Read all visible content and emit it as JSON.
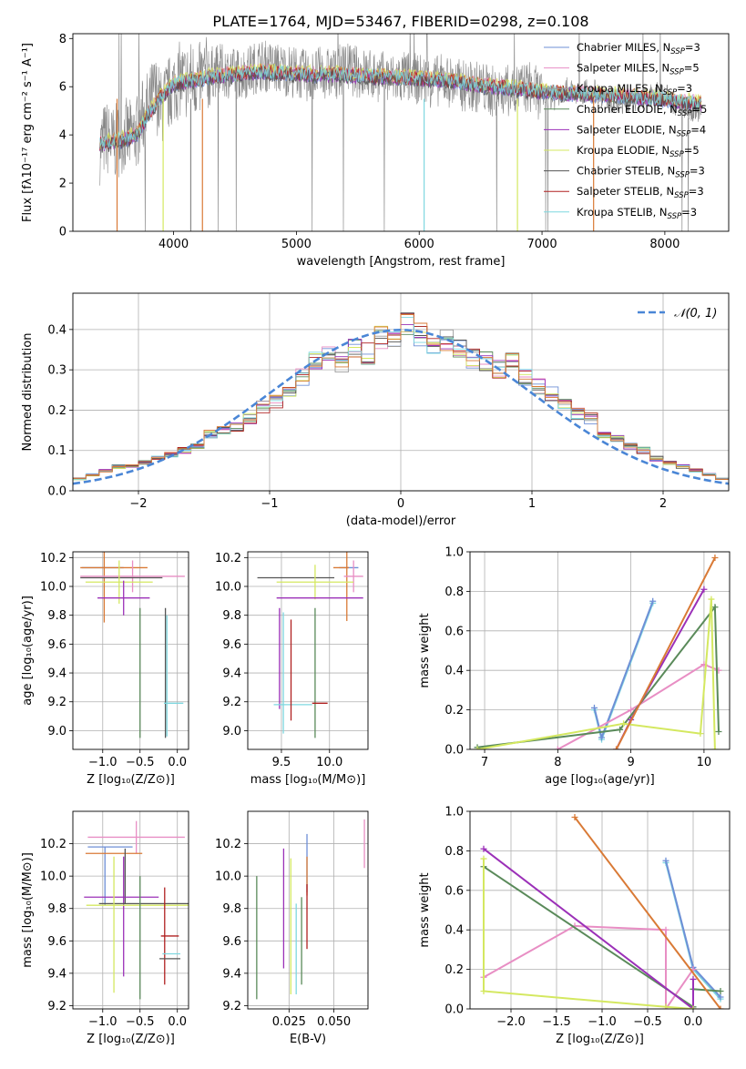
{
  "title": "PLATE=1764, MJD=53467, FIBERID=0298, z=0.108",
  "series_colors": [
    "#6e8fd6",
    "#e88ec4",
    "#9c9c9c",
    "#5a8a5a",
    "#9b30b8",
    "#d4e860",
    "#555555",
    "#b02020",
    "#7fd8e0",
    "#d97a36"
  ],
  "legend_entries": [
    {
      "label": "Chabrier MILES, N",
      "sub": "SSP",
      "eq": "=3",
      "color": "#6e8fd6"
    },
    {
      "label": "Salpeter MILES, N",
      "sub": "SSP",
      "eq": "=5",
      "color": "#e88ec4"
    },
    {
      "label": "Kroupa MILES, N",
      "sub": "SSP",
      "eq": "=3",
      "color": "#9c9c9c"
    },
    {
      "label": "Chabrier ELODIE, N",
      "sub": "SSP",
      "eq": "=5",
      "color": "#5a8a5a"
    },
    {
      "label": "Salpeter ELODIE, N",
      "sub": "SSP",
      "eq": "=4",
      "color": "#9b30b8"
    },
    {
      "label": "Kroupa ELODIE, N",
      "sub": "SSP",
      "eq": "=5",
      "color": "#d4e860"
    },
    {
      "label": "Chabrier STELIB, N",
      "sub": "SSP",
      "eq": "=3",
      "color": "#555555"
    },
    {
      "label": "Salpeter STELIB, N",
      "sub": "SSP",
      "eq": "=3",
      "color": "#b02020"
    },
    {
      "label": "Kroupa STELIB, N",
      "sub": "SSP",
      "eq": "=3",
      "color": "#7fd8e0"
    }
  ],
  "chart_data": [
    {
      "id": "spectrum",
      "type": "line",
      "xlabel": "wavelength [Angstrom, rest frame]",
      "ylabel": "Flux [fλ10⁻¹⁷ erg cm⁻² s⁻¹ A⁻¹]",
      "xlim": [
        3180,
        8520
      ],
      "ylim": [
        0,
        8.2
      ],
      "xticks": [
        4000,
        5000,
        6000,
        7000,
        8000
      ],
      "yticks": [
        0,
        2,
        4,
        6,
        8
      ],
      "data_x": [
        3400,
        3450,
        3500,
        3550,
        3600,
        3650,
        3700,
        3750,
        3800,
        3850,
        3900,
        3950,
        4000,
        4050,
        4100,
        4150,
        4200,
        4250,
        4300,
        4400,
        4500,
        4600,
        4700,
        4800,
        4900,
        5000,
        5100,
        5200,
        5300,
        5400,
        5500,
        5600,
        5700,
        5800,
        5900,
        6000,
        6100,
        6200,
        6300,
        6400,
        6500,
        6600,
        6700,
        6800,
        6900,
        7000,
        7100,
        7200,
        7300,
        7400,
        7500,
        7600,
        7700,
        7800,
        7900,
        8000,
        8100,
        8200,
        8300
      ],
      "data_y": [
        3.5,
        3.9,
        3.6,
        3.8,
        4.0,
        3.9,
        4.1,
        4.8,
        5.2,
        5.8,
        5.1,
        5.6,
        6.0,
        6.3,
        6.2,
        6.4,
        6.2,
        6.5,
        6.6,
        6.7,
        6.5,
        6.6,
        6.9,
        6.8,
        6.7,
        6.6,
        6.4,
        6.6,
        6.5,
        6.8,
        6.6,
        6.5,
        6.4,
        6.3,
        6.4,
        6.3,
        6.2,
        6.3,
        6.1,
        6.0,
        6.0,
        5.8,
        5.8,
        5.9,
        6.0,
        5.6,
        5.5,
        5.9,
        5.7,
        5.9,
        5.6,
        5.3,
        5.4,
        5.5,
        5.7,
        5.7,
        5.2,
        5.1,
        5.0
      ],
      "model_x": [
        3400,
        3500,
        3600,
        3700,
        3800,
        3900,
        4000,
        4100,
        4200,
        4300,
        4500,
        4700,
        4900,
        5100,
        5300,
        5500,
        5700,
        5900,
        6100,
        6300,
        6500,
        6700,
        6900,
        7100,
        7300,
        7500,
        7700,
        7900,
        8100,
        8300
      ],
      "model_y": [
        3.6,
        3.7,
        3.8,
        4.0,
        4.9,
        5.6,
        6.1,
        6.2,
        6.3,
        6.4,
        6.5,
        6.6,
        6.55,
        6.5,
        6.5,
        6.45,
        6.4,
        6.35,
        6.3,
        6.2,
        6.05,
        5.95,
        5.85,
        5.75,
        5.7,
        5.65,
        5.6,
        5.5,
        5.4,
        5.3
      ],
      "legend": "top-right",
      "grid": false
    },
    {
      "id": "residual_hist",
      "type": "histogram",
      "xlabel": "(data-model)/error",
      "ylabel": "Normed distribution",
      "xlim": [
        -2.5,
        2.5
      ],
      "ylim": [
        0,
        0.49
      ],
      "xticks": [
        -2,
        -1,
        0,
        1,
        2
      ],
      "yticks": [
        0.0,
        0.1,
        0.2,
        0.3,
        0.4
      ],
      "bin_edges": [
        -2.5,
        -2.4,
        -2.3,
        -2.2,
        -2.1,
        -2.0,
        -1.9,
        -1.8,
        -1.7,
        -1.6,
        -1.5,
        -1.4,
        -1.3,
        -1.2,
        -1.1,
        -1.0,
        -0.9,
        -0.8,
        -0.7,
        -0.6,
        -0.5,
        -0.4,
        -0.3,
        -0.2,
        -0.1,
        0.0,
        0.1,
        0.2,
        0.3,
        0.4,
        0.5,
        0.6,
        0.7,
        0.8,
        0.9,
        1.0,
        1.1,
        1.2,
        1.3,
        1.4,
        1.5,
        1.6,
        1.7,
        1.8,
        1.9,
        2.0,
        2.1,
        2.2,
        2.3,
        2.4,
        2.5
      ],
      "values": [
        0.03,
        0.04,
        0.05,
        0.06,
        0.06,
        0.07,
        0.08,
        0.09,
        0.1,
        0.11,
        0.14,
        0.15,
        0.16,
        0.18,
        0.21,
        0.22,
        0.24,
        0.28,
        0.32,
        0.34,
        0.32,
        0.36,
        0.34,
        0.38,
        0.37,
        0.42,
        0.39,
        0.36,
        0.37,
        0.36,
        0.33,
        0.32,
        0.3,
        0.32,
        0.28,
        0.26,
        0.24,
        0.21,
        0.19,
        0.18,
        0.14,
        0.13,
        0.11,
        0.1,
        0.08,
        0.07,
        0.06,
        0.05,
        0.04,
        0.03
      ],
      "gaussian_label": "𝒩(0, 1)",
      "legend": "top-right",
      "grid": true
    },
    {
      "id": "age_vs_Z",
      "type": "errorbar",
      "xlabel": "Z [log₁₀(Z/Z⊙)]",
      "ylabel": "age  [log₁₀(age/yr)]",
      "xlim": [
        -1.4,
        0.15
      ],
      "ylim": [
        8.87,
        10.24
      ],
      "xticks": [
        -1.0,
        -0.5,
        0.0
      ],
      "yticks": [
        9.0,
        9.2,
        9.4,
        9.6,
        9.8,
        10.0,
        10.2
      ],
      "points": [
        {
          "x": -1.0,
          "y": 10.13,
          "xerr": 0.28,
          "yerr": 0.0,
          "c": "#6e8fd6"
        },
        {
          "x": -0.98,
          "y": 10.0,
          "xerr": 0.0,
          "yerr": 0.25,
          "c": "#d97a36"
        },
        {
          "x": -0.85,
          "y": 10.13,
          "xerr": 0.45,
          "yerr": 0.0,
          "c": "#d97a36"
        },
        {
          "x": -0.6,
          "y": 10.07,
          "xerr": 0.7,
          "yerr": 0.11,
          "c": "#e88ec4"
        },
        {
          "x": -0.75,
          "y": 10.06,
          "xerr": 0.55,
          "yerr": 0.0,
          "c": "#555555"
        },
        {
          "x": -0.78,
          "y": 10.03,
          "xerr": 0.45,
          "yerr": 0.15,
          "c": "#d4e860"
        },
        {
          "x": -0.72,
          "y": 9.92,
          "xerr": 0.35,
          "yerr": 0.12,
          "c": "#9b30b8"
        },
        {
          "x": -0.5,
          "y": 9.4,
          "xerr": 0.0,
          "yerr": 0.45,
          "c": "#5a8a5a"
        },
        {
          "x": -0.16,
          "y": 9.4,
          "xerr": 0.0,
          "yerr": 0.45,
          "c": "#555555"
        },
        {
          "x": -0.05,
          "y": 9.19,
          "xerr": 0.13,
          "yerr": 0.0,
          "c": "#7fd8e0"
        },
        {
          "x": -0.14,
          "y": 9.38,
          "xerr": 0.0,
          "yerr": 0.42,
          "c": "#7fd8e0"
        }
      ]
    },
    {
      "id": "age_vs_mass",
      "type": "errorbar",
      "xlabel": "mass [log₁₀(M/M⊙)]",
      "ylabel": "",
      "xlim": [
        9.15,
        10.4
      ],
      "ylim": [
        8.87,
        10.24
      ],
      "xticks": [
        9.5,
        10.0
      ],
      "yticks": [
        9.0,
        9.2,
        9.4,
        9.6,
        9.8,
        10.0,
        10.2
      ],
      "points": [
        {
          "x": 10.2,
          "y": 10.13,
          "xerr": 0.1,
          "yerr": 0.0,
          "c": "#6e8fd6"
        },
        {
          "x": 10.18,
          "y": 10.0,
          "xerr": 0.0,
          "yerr": 0.24,
          "c": "#d97a36"
        },
        {
          "x": 10.12,
          "y": 10.13,
          "xerr": 0.08,
          "yerr": 0.0,
          "c": "#d97a36"
        },
        {
          "x": 10.25,
          "y": 10.07,
          "xerr": 0.1,
          "yerr": 0.11,
          "c": "#e88ec4"
        },
        {
          "x": 9.65,
          "y": 10.06,
          "xerr": 0.4,
          "yerr": 0.0,
          "c": "#555555"
        },
        {
          "x": 9.85,
          "y": 10.03,
          "xerr": 0.4,
          "yerr": 0.12,
          "c": "#d4e860"
        },
        {
          "x": 9.9,
          "y": 9.92,
          "xerr": 0.45,
          "yerr": 0.0,
          "c": "#9b30b8"
        },
        {
          "x": 9.48,
          "y": 9.5,
          "xerr": 0.0,
          "yerr": 0.35,
          "c": "#9b30b8"
        },
        {
          "x": 9.85,
          "y": 9.4,
          "xerr": 0.0,
          "yerr": 0.45,
          "c": "#5a8a5a"
        },
        {
          "x": 9.52,
          "y": 9.4,
          "xerr": 0.0,
          "yerr": 0.42,
          "c": "#7fd8e0"
        },
        {
          "x": 9.62,
          "y": 9.18,
          "xerr": 0.2,
          "yerr": 0.0,
          "c": "#7fd8e0"
        },
        {
          "x": 9.9,
          "y": 9.19,
          "xerr": 0.08,
          "yerr": 0.0,
          "c": "#b02020"
        },
        {
          "x": 9.6,
          "y": 9.42,
          "xerr": 0.0,
          "yerr": 0.35,
          "c": "#b02020"
        }
      ]
    },
    {
      "id": "weight_vs_age",
      "type": "line",
      "xlabel": "age  [log₁₀(age/yr)]",
      "ylabel": "mass weight",
      "xlim": [
        6.8,
        10.35
      ],
      "ylim": [
        0,
        1.0
      ],
      "xticks": [
        7,
        8,
        9,
        10
      ],
      "yticks": [
        0.0,
        0.2,
        0.4,
        0.6,
        0.8,
        1.0
      ],
      "series": [
        {
          "c": "#7fd8e0",
          "x": [
            8.5,
            8.6,
            9.3
          ],
          "y": [
            0.2,
            0.05,
            0.74
          ]
        },
        {
          "c": "#6e8fd6",
          "x": [
            8.5,
            8.6,
            9.3
          ],
          "y": [
            0.21,
            0.06,
            0.75
          ]
        },
        {
          "c": "#e88ec4",
          "x": [
            8.0,
            9.0,
            10.0,
            10.2
          ],
          "y": [
            0.0,
            0.2,
            0.43,
            0.4
          ]
        },
        {
          "c": "#5a8a5a",
          "x": [
            6.9,
            8.85,
            10.15,
            10.2
          ],
          "y": [
            0.01,
            0.1,
            0.72,
            0.09
          ]
        },
        {
          "c": "#9b30b8",
          "x": [
            8.8,
            9.0,
            10.0
          ],
          "y": [
            0.0,
            0.15,
            0.81
          ]
        },
        {
          "c": "#d4e860",
          "x": [
            6.9,
            8.9,
            9.95,
            10.1,
            10.15
          ],
          "y": [
            0.0,
            0.13,
            0.08,
            0.76,
            0.0
          ]
        },
        {
          "c": "#d97a36",
          "x": [
            8.8,
            10.15
          ],
          "y": [
            0.0,
            0.97
          ]
        }
      ]
    },
    {
      "id": "mass_vs_Z",
      "type": "errorbar",
      "xlabel": "Z [log₁₀(Z/Z⊙)]",
      "ylabel": "mass [log₁₀(M/M⊙)]",
      "xlim": [
        -1.4,
        0.15
      ],
      "ylim": [
        9.18,
        10.4
      ],
      "xticks": [
        -1.0,
        -0.5,
        0.0
      ],
      "yticks": [
        9.2,
        9.4,
        9.6,
        9.8,
        10.0,
        10.2
      ],
      "points": [
        {
          "x": -0.55,
          "y": 10.24,
          "xerr": 0.65,
          "yerr": 0.1,
          "c": "#e88ec4"
        },
        {
          "x": -0.9,
          "y": 10.18,
          "xerr": 0.3,
          "yerr": 0.0,
          "c": "#6e8fd6"
        },
        {
          "x": -0.97,
          "y": 10.0,
          "xerr": 0.0,
          "yerr": 0.18,
          "c": "#6e8fd6"
        },
        {
          "x": -0.85,
          "y": 10.14,
          "xerr": 0.38,
          "yerr": 0.0,
          "c": "#d97a36"
        },
        {
          "x": -0.7,
          "y": 10.0,
          "xerr": 0.0,
          "yerr": 0.17,
          "c": "#555555"
        },
        {
          "x": -0.75,
          "y": 9.87,
          "xerr": 0.5,
          "yerr": 0.0,
          "c": "#9b30b8"
        },
        {
          "x": -0.72,
          "y": 9.75,
          "xerr": 0.0,
          "yerr": 0.37,
          "c": "#9b30b8"
        },
        {
          "x": -0.45,
          "y": 9.83,
          "xerr": 0.6,
          "yerr": 0.0,
          "c": "#555555"
        },
        {
          "x": -0.52,
          "y": 9.82,
          "xerr": 0.7,
          "yerr": 0.0,
          "c": "#d4e860"
        },
        {
          "x": -0.85,
          "y": 9.7,
          "xerr": 0.0,
          "yerr": 0.42,
          "c": "#d4e860"
        },
        {
          "x": -0.5,
          "y": 9.62,
          "xerr": 0.0,
          "yerr": 0.38,
          "c": "#5a8a5a"
        },
        {
          "x": -0.1,
          "y": 9.63,
          "xerr": 0.12,
          "yerr": 0.0,
          "c": "#b02020"
        },
        {
          "x": -0.17,
          "y": 9.63,
          "xerr": 0.0,
          "yerr": 0.3,
          "c": "#b02020"
        },
        {
          "x": -0.08,
          "y": 9.52,
          "xerr": 0.12,
          "yerr": 0.0,
          "c": "#7fd8e0"
        },
        {
          "x": -0.1,
          "y": 9.49,
          "xerr": 0.14,
          "yerr": 0.0,
          "c": "#555555"
        }
      ]
    },
    {
      "id": "mass_vs_ebv",
      "type": "errorbar",
      "xlabel": "E(B-V)",
      "ylabel": "",
      "xlim": [
        0.002,
        0.069
      ],
      "ylim": [
        9.18,
        10.4
      ],
      "xticks": [
        0.025,
        0.05
      ],
      "yticks": [
        9.2,
        9.4,
        9.6,
        9.8,
        10.0,
        10.2
      ],
      "points": [
        {
          "x": 0.007,
          "y": 9.62,
          "xerr": 0.0,
          "yerr": 0.38,
          "c": "#5a8a5a"
        },
        {
          "x": 0.022,
          "y": 9.8,
          "xerr": 0.0,
          "yerr": 0.37,
          "c": "#9b30b8"
        },
        {
          "x": 0.026,
          "y": 9.69,
          "xerr": 0.0,
          "yerr": 0.42,
          "c": "#d4e860"
        },
        {
          "x": 0.029,
          "y": 9.55,
          "xerr": 0.0,
          "yerr": 0.28,
          "c": "#7fd8e0"
        },
        {
          "x": 0.032,
          "y": 9.6,
          "xerr": 0.0,
          "yerr": 0.27,
          "c": "#5a8a5a"
        },
        {
          "x": 0.035,
          "y": 10.08,
          "xerr": 0.0,
          "yerr": 0.18,
          "c": "#6e8fd6"
        },
        {
          "x": 0.035,
          "y": 10.0,
          "xerr": 0.0,
          "yerr": 0.12,
          "c": "#d97a36"
        },
        {
          "x": 0.035,
          "y": 9.75,
          "xerr": 0.0,
          "yerr": 0.2,
          "c": "#b02020"
        },
        {
          "x": 0.067,
          "y": 10.2,
          "xerr": 0.0,
          "yerr": 0.15,
          "c": "#e88ec4"
        }
      ]
    },
    {
      "id": "weight_vs_Z",
      "type": "line",
      "xlabel": "Z [log₁₀(Z/Z⊙)]",
      "ylabel": "mass weight",
      "xlim": [
        -2.45,
        0.4
      ],
      "ylim": [
        0,
        1.0
      ],
      "xticks": [
        -2.0,
        -1.5,
        -1.0,
        -0.5,
        0.0
      ],
      "yticks": [
        0.0,
        0.2,
        0.4,
        0.6,
        0.8,
        1.0
      ],
      "series": [
        {
          "c": "#7fd8e0",
          "x": [
            -0.3,
            0.0,
            0.3
          ],
          "y": [
            0.74,
            0.2,
            0.05
          ]
        },
        {
          "c": "#6e8fd6",
          "x": [
            -0.3,
            0.0,
            0.3
          ],
          "y": [
            0.75,
            0.21,
            0.06
          ]
        },
        {
          "c": "#e88ec4",
          "x": [
            -2.3,
            -1.3,
            -0.3,
            -0.3,
            0.0
          ],
          "y": [
            0.16,
            0.42,
            0.4,
            0.0,
            0.2
          ]
        },
        {
          "c": "#5a8a5a",
          "x": [
            -2.3,
            0.0,
            0.0,
            0.3
          ],
          "y": [
            0.72,
            0.01,
            0.1,
            0.09
          ]
        },
        {
          "c": "#9b30b8",
          "x": [
            -2.3,
            0.0,
            0.0
          ],
          "y": [
            0.81,
            0.0,
            0.15
          ]
        },
        {
          "c": "#d4e860",
          "x": [
            -2.3,
            -2.3,
            -0.3,
            0.0
          ],
          "y": [
            0.76,
            0.09,
            0.01,
            0.0
          ]
        },
        {
          "c": "#d97a36",
          "x": [
            -1.3,
            0.3
          ],
          "y": [
            0.97,
            0.0
          ]
        }
      ]
    }
  ]
}
